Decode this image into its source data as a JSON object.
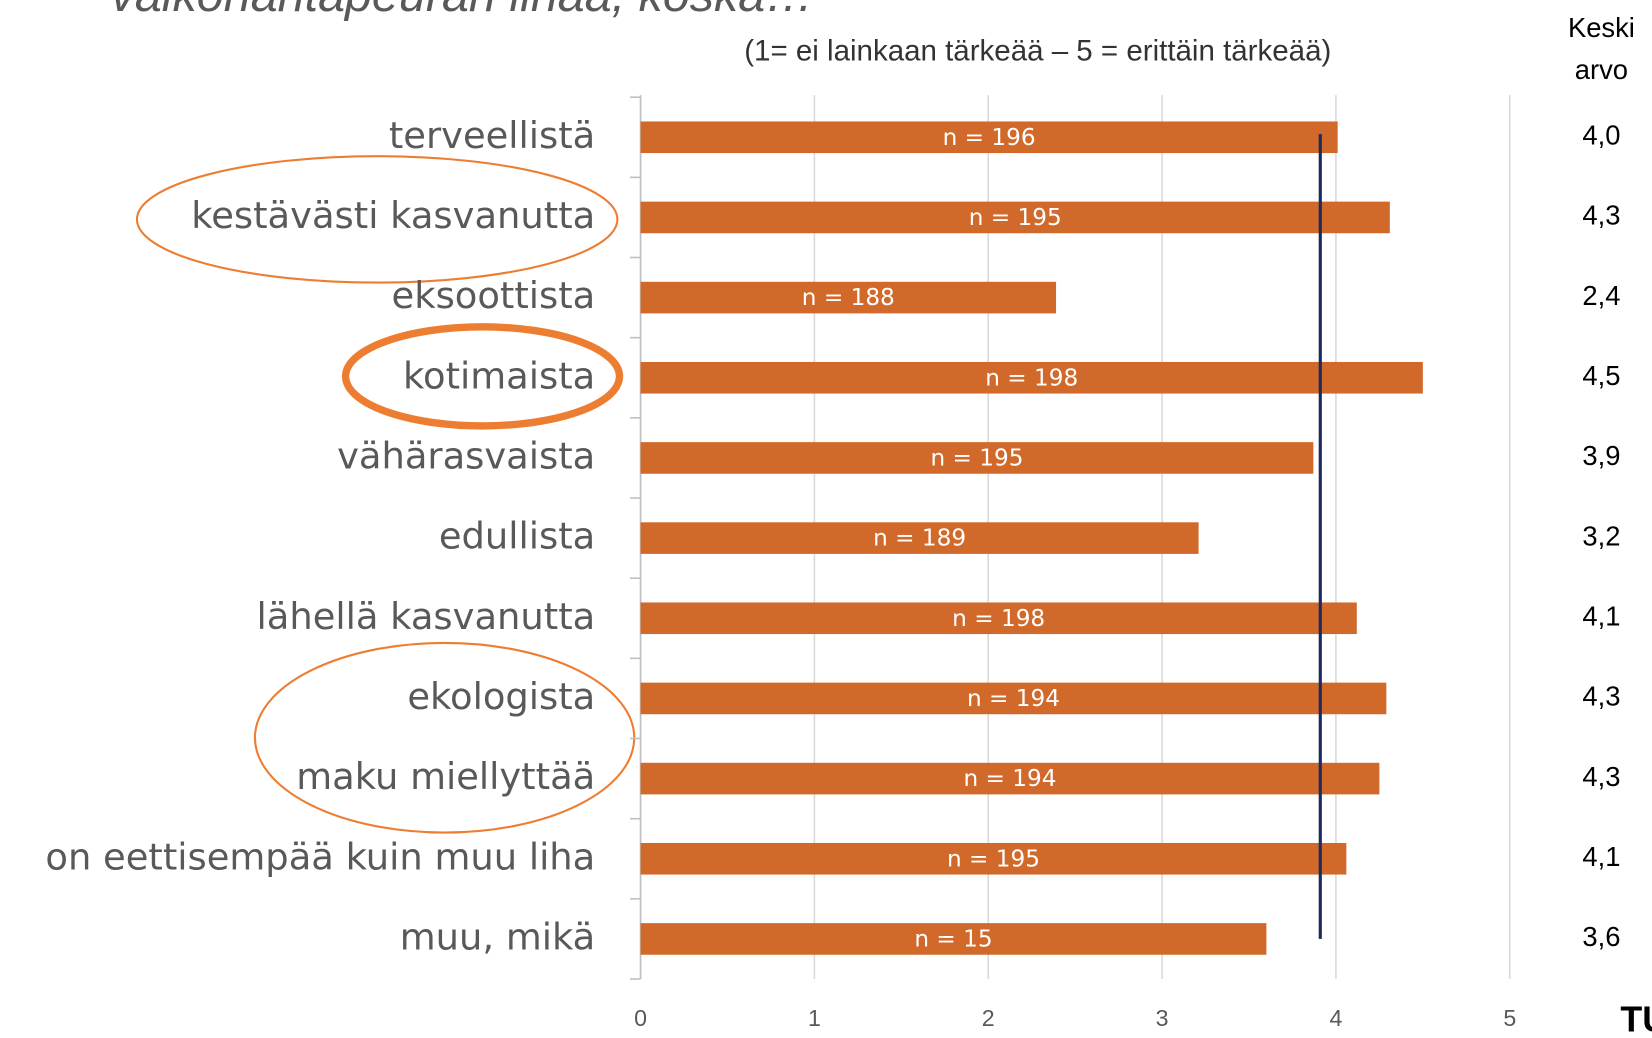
{
  "chart_data": {
    "type": "bar",
    "orientation": "horizontal",
    "title": "valkohäntäpeuran lihaa, koska…",
    "subtitle": "(1= ei lainkaan tärkeää – 5 = erittäin tärkeää)",
    "column_header": [
      "Keski",
      "arvo"
    ],
    "categories": [
      "terveellistä",
      "kestävästi kasvanutta",
      "eksoottista",
      "kotimaista",
      "vähärasvaista",
      "edullista",
      "lähellä kasvanutta",
      "ekologista",
      "maku miellyttää",
      "on eettisempää kuin muu liha",
      "muu, mikä"
    ],
    "values": [
      4.01,
      4.31,
      2.39,
      4.5,
      3.87,
      3.21,
      4.12,
      4.29,
      4.25,
      4.06,
      3.6
    ],
    "value_labels": [
      "4,0",
      "4,3",
      "2,4",
      "4,5",
      "3,9",
      "3,2",
      "4,1",
      "4,3",
      "4,3",
      "4,1",
      "3,6"
    ],
    "n_labels": [
      "n = 196",
      "n = 195",
      "n = 188",
      "n = 198",
      "n = 195",
      "n = 189",
      "n = 198",
      "n = 194",
      "n = 194",
      "n = 195",
      "n = 15"
    ],
    "color": "#d1692a",
    "reference_line": 3.91,
    "reference_color": "#1f2a5c",
    "xlim": [
      0,
      5
    ],
    "xticks": [
      0,
      1,
      2,
      3,
      4,
      5
    ],
    "grid": true,
    "logo_text": "TU"
  }
}
